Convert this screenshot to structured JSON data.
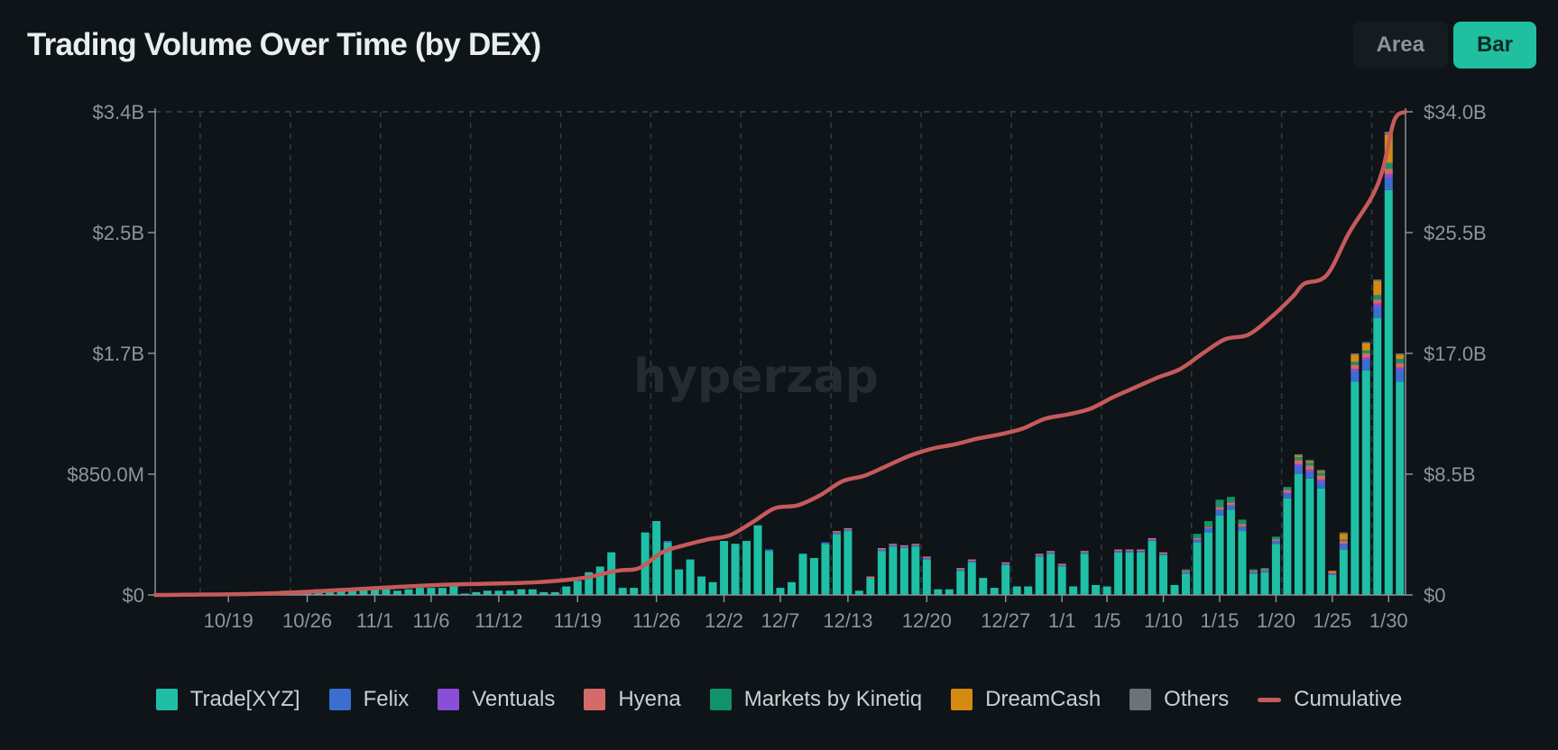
{
  "header": {
    "title": "Trading Volume Over Time (by DEX)",
    "toggle_area": "Area",
    "toggle_bar": "Bar",
    "active": "Bar"
  },
  "watermark": "hyperzap",
  "colors": {
    "background": "#0e1418",
    "Trade[XYZ]": "#1fbfa5",
    "Felix": "#3a6fd0",
    "Ventuals": "#8a4fd6",
    "Hyena": "#d46a6a",
    "Markets by Kinetiq": "#12926a",
    "DreamCash": "#d38b12",
    "Others": "#6b7378",
    "Cumulative": "#c65a5a"
  },
  "legend": [
    {
      "name": "Trade[XYZ]",
      "kind": "box"
    },
    {
      "name": "Felix",
      "kind": "box"
    },
    {
      "name": "Ventuals",
      "kind": "box"
    },
    {
      "name": "Hyena",
      "kind": "box"
    },
    {
      "name": "Markets by Kinetiq",
      "kind": "box"
    },
    {
      "name": "DreamCash",
      "kind": "box"
    },
    {
      "name": "Others",
      "kind": "box"
    },
    {
      "name": "Cumulative",
      "kind": "line"
    }
  ],
  "chart_data": {
    "type": "bar",
    "stacked": true,
    "x_tick_labels": [
      "10/19",
      "10/26",
      "11/1",
      "11/6",
      "11/12",
      "11/19",
      "11/26",
      "12/2",
      "12/7",
      "12/13",
      "12/20",
      "12/27",
      "1/1",
      "1/5",
      "1/10",
      "1/15",
      "1/20",
      "1/25",
      "1/30"
    ],
    "x_tick_index": [
      6,
      13,
      19,
      24,
      30,
      37,
      44,
      50,
      55,
      61,
      68,
      75,
      80,
      84,
      89,
      94,
      99,
      104,
      109
    ],
    "y_left": {
      "ticks": [
        "$0",
        "$850.0M",
        "$1.7B",
        "$2.5B",
        "$3.4B"
      ],
      "min": 0,
      "max": 3.4,
      "unit": "B USD"
    },
    "y_right": {
      "ticks": [
        "$0",
        "$8.5B",
        "$17.0B",
        "$25.5B",
        "$34.0B"
      ],
      "min": 0,
      "max": 34,
      "unit": "B USD"
    },
    "vertical_gridlines_at_index": [
      4,
      12,
      20,
      28,
      36,
      44,
      52,
      60,
      68,
      76,
      84,
      92,
      100,
      108
    ],
    "series": [
      {
        "name": "Trade[XYZ]",
        "values": [
          0.01,
          0.005,
          0.005,
          0.005,
          0.005,
          0.01,
          0.01,
          0.01,
          0.01,
          0.02,
          0.02,
          0.03,
          0.03,
          0.03,
          0.04,
          0.04,
          0.04,
          0.05,
          0.05,
          0.06,
          0.04,
          0.03,
          0.04,
          0.05,
          0.05,
          0.05,
          0.06,
          0.01,
          0.02,
          0.03,
          0.03,
          0.03,
          0.04,
          0.04,
          0.02,
          0.02,
          0.06,
          0.1,
          0.16,
          0.2,
          0.3,
          0.05,
          0.05,
          0.44,
          0.52,
          0.37,
          0.18,
          0.25,
          0.13,
          0.09,
          0.38,
          0.36,
          0.38,
          0.49,
          0.31,
          0.05,
          0.09,
          0.29,
          0.26,
          0.36,
          0.43,
          0.45,
          0.03,
          0.12,
          0.31,
          0.34,
          0.33,
          0.34,
          0.25,
          0.04,
          0.04,
          0.17,
          0.23,
          0.12,
          0.05,
          0.21,
          0.06,
          0.06,
          0.27,
          0.29,
          0.2,
          0.06,
          0.29,
          0.07,
          0.06,
          0.3,
          0.3,
          0.3,
          0.38,
          0.28,
          0.07,
          0.15,
          0.37,
          0.44,
          0.56,
          0.6,
          0.45,
          0.15,
          0.16,
          0.36,
          0.68,
          0.85,
          0.82,
          0.75,
          0.14,
          0.32,
          1.5,
          1.58,
          1.95,
          2.85,
          1.5
        ]
      },
      {
        "name": "Felix",
        "values": [
          0,
          0,
          0,
          0,
          0,
          0,
          0,
          0,
          0,
          0,
          0,
          0,
          0,
          0,
          0,
          0,
          0,
          0,
          0,
          0,
          0,
          0,
          0,
          0,
          0,
          0,
          0,
          0,
          0,
          0,
          0,
          0,
          0,
          0,
          0,
          0,
          0,
          0,
          0,
          0,
          0,
          0,
          0,
          0,
          0,
          0.01,
          0,
          0,
          0,
          0,
          0,
          0,
          0,
          0,
          0.01,
          0,
          0,
          0,
          0,
          0.01,
          0.01,
          0.01,
          0,
          0,
          0.01,
          0.01,
          0.01,
          0.01,
          0.01,
          0,
          0,
          0.01,
          0.01,
          0,
          0,
          0.01,
          0,
          0,
          0.01,
          0.01,
          0.01,
          0,
          0.01,
          0,
          0,
          0.01,
          0.01,
          0.01,
          0.01,
          0.01,
          0,
          0.01,
          0.02,
          0.03,
          0.04,
          0.03,
          0.03,
          0.01,
          0.01,
          0.02,
          0.03,
          0.05,
          0.04,
          0.04,
          0.01,
          0.03,
          0.07,
          0.07,
          0.07,
          0.08,
          0.08
        ]
      },
      {
        "name": "Ventuals",
        "values": [
          0,
          0,
          0,
          0,
          0,
          0,
          0,
          0,
          0,
          0,
          0,
          0,
          0,
          0,
          0,
          0,
          0,
          0,
          0,
          0,
          0,
          0,
          0,
          0,
          0,
          0,
          0,
          0,
          0,
          0,
          0,
          0,
          0,
          0,
          0,
          0,
          0,
          0,
          0,
          0,
          0,
          0,
          0,
          0,
          0,
          0,
          0,
          0,
          0,
          0,
          0,
          0,
          0,
          0,
          0,
          0,
          0,
          0,
          0,
          0,
          0,
          0,
          0,
          0,
          0,
          0,
          0,
          0,
          0,
          0,
          0,
          0,
          0,
          0,
          0,
          0,
          0,
          0,
          0,
          0,
          0,
          0,
          0,
          0,
          0,
          0,
          0,
          0,
          0,
          0,
          0,
          0,
          0,
          0,
          0,
          0,
          0,
          0,
          0,
          0,
          0.01,
          0.02,
          0.02,
          0.02,
          0,
          0.01,
          0.02,
          0.02,
          0.03,
          0.03,
          0.02
        ]
      },
      {
        "name": "Hyena",
        "values": [
          0,
          0,
          0,
          0,
          0,
          0,
          0,
          0,
          0,
          0,
          0,
          0,
          0,
          0,
          0,
          0,
          0,
          0,
          0,
          0,
          0,
          0,
          0,
          0,
          0,
          0,
          0,
          0,
          0,
          0,
          0,
          0,
          0,
          0,
          0,
          0,
          0,
          0,
          0,
          0,
          0,
          0,
          0,
          0,
          0,
          0,
          0,
          0,
          0,
          0,
          0,
          0,
          0,
          0,
          0,
          0,
          0,
          0,
          0,
          0,
          0.01,
          0.01,
          0,
          0.01,
          0.01,
          0.01,
          0.01,
          0.01,
          0.01,
          0,
          0,
          0.01,
          0.01,
          0,
          0,
          0.01,
          0,
          0,
          0.01,
          0.01,
          0.01,
          0,
          0.01,
          0,
          0,
          0.01,
          0.01,
          0.01,
          0.01,
          0.01,
          0,
          0.01,
          0.01,
          0.01,
          0.02,
          0.02,
          0.02,
          0.01,
          0.01,
          0.01,
          0.02,
          0.03,
          0.03,
          0.03,
          0.01,
          0.02,
          0.03,
          0.03,
          0.03,
          0.04,
          0.03
        ]
      },
      {
        "name": "Markets by Kinetiq",
        "values": [
          0,
          0,
          0,
          0,
          0,
          0,
          0,
          0,
          0,
          0,
          0,
          0,
          0,
          0,
          0,
          0,
          0,
          0,
          0,
          0,
          0,
          0,
          0,
          0,
          0,
          0,
          0,
          0,
          0,
          0,
          0,
          0,
          0,
          0,
          0,
          0,
          0,
          0,
          0,
          0,
          0,
          0,
          0,
          0,
          0,
          0,
          0,
          0,
          0,
          0,
          0,
          0,
          0,
          0,
          0,
          0,
          0,
          0,
          0,
          0,
          0,
          0,
          0,
          0,
          0,
          0,
          0,
          0,
          0,
          0,
          0,
          0,
          0,
          0,
          0,
          0,
          0,
          0,
          0,
          0,
          0,
          0,
          0,
          0,
          0,
          0,
          0,
          0,
          0,
          0,
          0,
          0.01,
          0.03,
          0.04,
          0.05,
          0.04,
          0.03,
          0.01,
          0.01,
          0.02,
          0.02,
          0.02,
          0.02,
          0.02,
          0,
          0.01,
          0.02,
          0.02,
          0.03,
          0.04,
          0.03
        ]
      },
      {
        "name": "DreamCash",
        "values": [
          0,
          0,
          0,
          0,
          0,
          0,
          0,
          0,
          0,
          0,
          0,
          0,
          0,
          0,
          0,
          0,
          0,
          0,
          0,
          0,
          0,
          0,
          0,
          0,
          0,
          0,
          0,
          0,
          0,
          0,
          0,
          0,
          0,
          0,
          0,
          0,
          0,
          0,
          0,
          0,
          0,
          0,
          0,
          0,
          0,
          0,
          0,
          0,
          0,
          0,
          0,
          0,
          0,
          0,
          0,
          0,
          0,
          0,
          0,
          0,
          0,
          0,
          0,
          0,
          0,
          0,
          0,
          0,
          0,
          0,
          0,
          0,
          0,
          0,
          0,
          0,
          0,
          0,
          0,
          0,
          0,
          0,
          0,
          0,
          0,
          0,
          0,
          0,
          0,
          0,
          0,
          0,
          0,
          0,
          0,
          0,
          0,
          0,
          0,
          0,
          0,
          0.01,
          0.01,
          0.01,
          0.01,
          0.04,
          0.05,
          0.05,
          0.1,
          0.2,
          0.03
        ]
      },
      {
        "name": "Others",
        "values": [
          0,
          0,
          0,
          0,
          0,
          0,
          0,
          0,
          0,
          0,
          0,
          0,
          0,
          0,
          0,
          0,
          0,
          0,
          0,
          0,
          0,
          0,
          0,
          0,
          0,
          0,
          0,
          0,
          0,
          0,
          0,
          0,
          0,
          0,
          0,
          0,
          0,
          0,
          0,
          0,
          0,
          0,
          0,
          0,
          0,
          0,
          0,
          0,
          0,
          0,
          0,
          0,
          0,
          0,
          0,
          0,
          0,
          0,
          0,
          0,
          0,
          0,
          0,
          0,
          0,
          0,
          0,
          0,
          0,
          0,
          0,
          0,
          0,
          0,
          0,
          0,
          0,
          0,
          0,
          0,
          0,
          0,
          0,
          0,
          0,
          0,
          0,
          0,
          0,
          0,
          0,
          0,
          0,
          0,
          0,
          0,
          0,
          0,
          0,
          0,
          0,
          0.01,
          0.01,
          0.01,
          0,
          0.01,
          0.01,
          0.01,
          0.01,
          0.02,
          0.01
        ]
      }
    ],
    "cumulative": {
      "name": "Cumulative",
      "axis": "right",
      "points": [
        [
          0,
          0
        ],
        [
          10,
          0.1
        ],
        [
          20,
          0.5
        ],
        [
          25,
          0.7
        ],
        [
          30,
          0.8
        ],
        [
          34,
          0.9
        ],
        [
          38,
          1.2
        ],
        [
          41,
          1.7
        ],
        [
          43,
          1.9
        ],
        [
          45,
          3.0
        ],
        [
          47,
          3.5
        ],
        [
          49,
          3.9
        ],
        [
          51,
          4.2
        ],
        [
          53,
          5.1
        ],
        [
          55,
          6.1
        ],
        [
          57,
          6.3
        ],
        [
          59,
          7.0
        ],
        [
          61,
          8.0
        ],
        [
          63,
          8.4
        ],
        [
          65,
          9.1
        ],
        [
          67,
          9.8
        ],
        [
          69,
          10.3
        ],
        [
          71,
          10.6
        ],
        [
          73,
          11.0
        ],
        [
          75,
          11.3
        ],
        [
          77,
          11.7
        ],
        [
          79,
          12.4
        ],
        [
          81,
          12.7
        ],
        [
          83,
          13.1
        ],
        [
          85,
          13.9
        ],
        [
          87,
          14.6
        ],
        [
          89,
          15.3
        ],
        [
          91,
          15.9
        ],
        [
          93,
          17.0
        ],
        [
          95,
          18.0
        ],
        [
          97,
          18.3
        ],
        [
          99,
          19.5
        ],
        [
          101,
          21.0
        ],
        [
          102,
          21.9
        ],
        [
          104,
          22.5
        ],
        [
          106,
          25.5
        ],
        [
          108,
          28.0
        ],
        [
          109,
          30.0
        ],
        [
          110,
          33.4
        ],
        [
          111,
          34.0
        ]
      ]
    }
  }
}
